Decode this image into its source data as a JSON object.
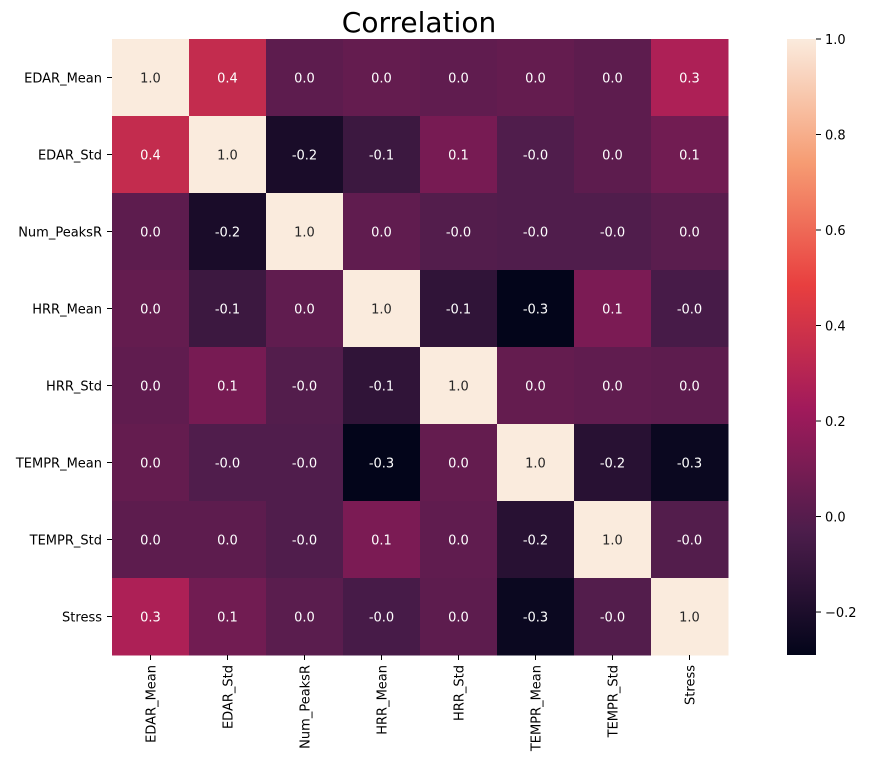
{
  "chart_data": {
    "type": "heatmap",
    "title": "Correlation",
    "x_categories": [
      "EDAR_Mean",
      "EDAR_Std",
      "Num_PeaksR",
      "HRR_Mean",
      "HRR_Std",
      "TEMPR_Mean",
      "TEMPR_Std",
      "Stress"
    ],
    "y_categories": [
      "EDAR_Mean",
      "EDAR_Std",
      "Num_PeaksR",
      "HRR_Mean",
      "HRR_Std",
      "TEMPR_Mean",
      "TEMPR_Std",
      "Stress"
    ],
    "values": [
      [
        1.0,
        0.35,
        0.02,
        0.04,
        0.03,
        0.04,
        0.02,
        0.27
      ],
      [
        0.35,
        1.0,
        -0.21,
        -0.09,
        0.1,
        -0.02,
        0.02,
        0.08
      ],
      [
        0.02,
        -0.21,
        1.0,
        0.03,
        -0.01,
        -0.02,
        -0.02,
        0.01
      ],
      [
        0.04,
        -0.09,
        0.03,
        1.0,
        -0.13,
        -0.29,
        0.11,
        -0.05
      ],
      [
        0.03,
        0.1,
        -0.01,
        -0.13,
        1.0,
        0.04,
        0.03,
        0.02
      ],
      [
        0.04,
        -0.02,
        -0.02,
        -0.29,
        0.04,
        1.0,
        -0.16,
        -0.26
      ],
      [
        0.02,
        0.02,
        -0.02,
        0.11,
        0.03,
        -0.16,
        1.0,
        -0.01
      ],
      [
        0.27,
        0.08,
        0.01,
        -0.05,
        0.02,
        -0.26,
        -0.01,
        1.0
      ]
    ],
    "annotations": [
      [
        "1.0",
        "0.4",
        "0.0",
        "0.0",
        "0.0",
        "0.0",
        "0.0",
        "0.3"
      ],
      [
        "0.4",
        "1.0",
        "-0.2",
        "-0.1",
        "0.1",
        "-0.0",
        "0.0",
        "0.1"
      ],
      [
        "0.0",
        "-0.2",
        "1.0",
        "0.0",
        "-0.0",
        "-0.0",
        "-0.0",
        "0.0"
      ],
      [
        "0.0",
        "-0.1",
        "0.0",
        "1.0",
        "-0.1",
        "-0.3",
        "0.1",
        "-0.0"
      ],
      [
        "0.0",
        "0.1",
        "-0.0",
        "-0.1",
        "1.0",
        "0.0",
        "0.0",
        "0.0"
      ],
      [
        "0.0",
        "-0.0",
        "-0.0",
        "-0.3",
        "0.0",
        "1.0",
        "-0.2",
        "-0.3"
      ],
      [
        "0.0",
        "0.0",
        "-0.0",
        "0.1",
        "0.0",
        "-0.2",
        "1.0",
        "-0.0"
      ],
      [
        "0.3",
        "0.1",
        "0.0",
        "-0.0",
        "0.0",
        "-0.3",
        "-0.0",
        "1.0"
      ]
    ],
    "colorbar": {
      "vmin": -0.29,
      "vmax": 1.0,
      "ticks": [
        -0.2,
        0.0,
        0.2,
        0.4,
        0.6,
        0.8,
        1.0
      ],
      "tick_labels": [
        "−0.2",
        "0.0",
        "0.2",
        "0.4",
        "0.6",
        "0.8",
        "1.0"
      ]
    },
    "colormap": "rocket",
    "colormap_stops": [
      "#03051a",
      "#4c1d4b",
      "#a11a5b",
      "#e83f3f",
      "#f69c73",
      "#faebdd"
    ],
    "dark_text_color": "#262626",
    "light_text_color": "#ffffff",
    "grid": false
  }
}
